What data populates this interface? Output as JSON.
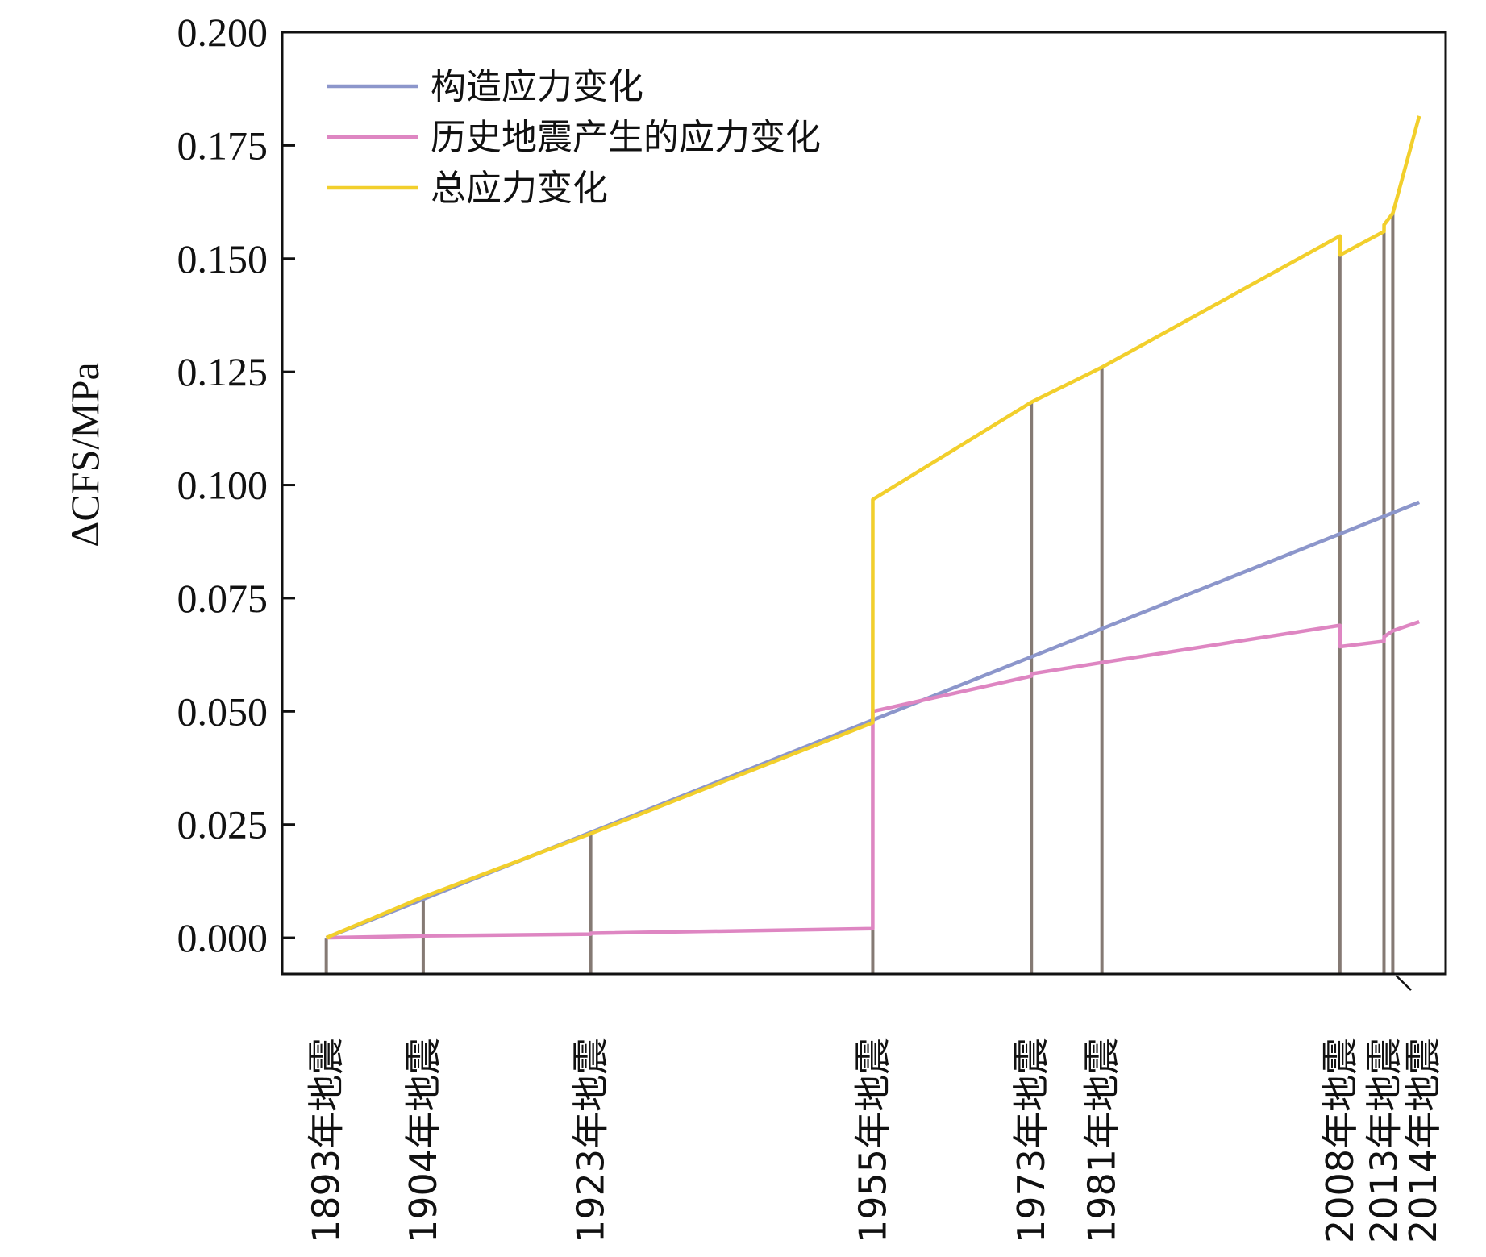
{
  "chart_data": {
    "type": "line",
    "title": "",
    "xlabel": "",
    "ylabel": "ΔCFS/MPa",
    "ylim": [
      -0.008,
      0.2
    ],
    "yticks": [
      "0.000",
      "0.025",
      "0.050",
      "0.075",
      "0.100",
      "0.125",
      "0.150",
      "0.175",
      "0.200"
    ],
    "xlim": [
      1888,
      2020
    ],
    "grid": false,
    "legend": "top-left",
    "events": [
      {
        "year": 1893,
        "label": "1893年地震",
        "top": 0.0
      },
      {
        "year": 1904,
        "label": "1904年地震",
        "top": 0.0092
      },
      {
        "year": 1923,
        "label": "1923年地震",
        "top": 0.0235
      },
      {
        "year": 1955,
        "label": "1955年地震",
        "top": 0.0968
      },
      {
        "year": 1973,
        "label": "1973年地震",
        "top": 0.1185
      },
      {
        "year": 1981,
        "label": "1981年地震",
        "top": 0.126
      },
      {
        "year": 2008,
        "label": "2008年地震",
        "top": 0.1508
      },
      {
        "year": 2013,
        "label": "2013年地震",
        "top": 0.1575
      },
      {
        "year": 2014,
        "label": "2014年地震",
        "top": 0.16
      }
    ],
    "series": [
      {
        "name": "构造应力变化",
        "color": "#8c96cb",
        "x": [
          1893,
          2017
        ],
        "y": [
          0.0,
          0.0962
        ]
      },
      {
        "name": "历史地震产生的应力变化",
        "color": "#de86c2",
        "x": [
          1893,
          1904,
          1923,
          1923.01,
          1955,
          1955.01,
          1973,
          1973.01,
          1981,
          2008,
          2008.01,
          2013,
          2013.01,
          2014,
          2017
        ],
        "y": [
          0.0,
          0.0004,
          0.0008,
          0.001,
          0.002,
          0.05,
          0.0578,
          0.0583,
          0.0608,
          0.069,
          0.0643,
          0.0655,
          0.0665,
          0.0678,
          0.0698
        ]
      },
      {
        "name": "总应力变化",
        "color": "#f2cf2c",
        "x": [
          1893,
          1904,
          1923,
          1955,
          1955.01,
          1973,
          1981,
          2008,
          2008.01,
          2013,
          2013.01,
          2014,
          2017
        ],
        "y": [
          0.0,
          0.009,
          0.023,
          0.0475,
          0.0968,
          0.1183,
          0.126,
          0.155,
          0.1508,
          0.156,
          0.1575,
          0.16,
          0.1815
        ]
      }
    ]
  }
}
